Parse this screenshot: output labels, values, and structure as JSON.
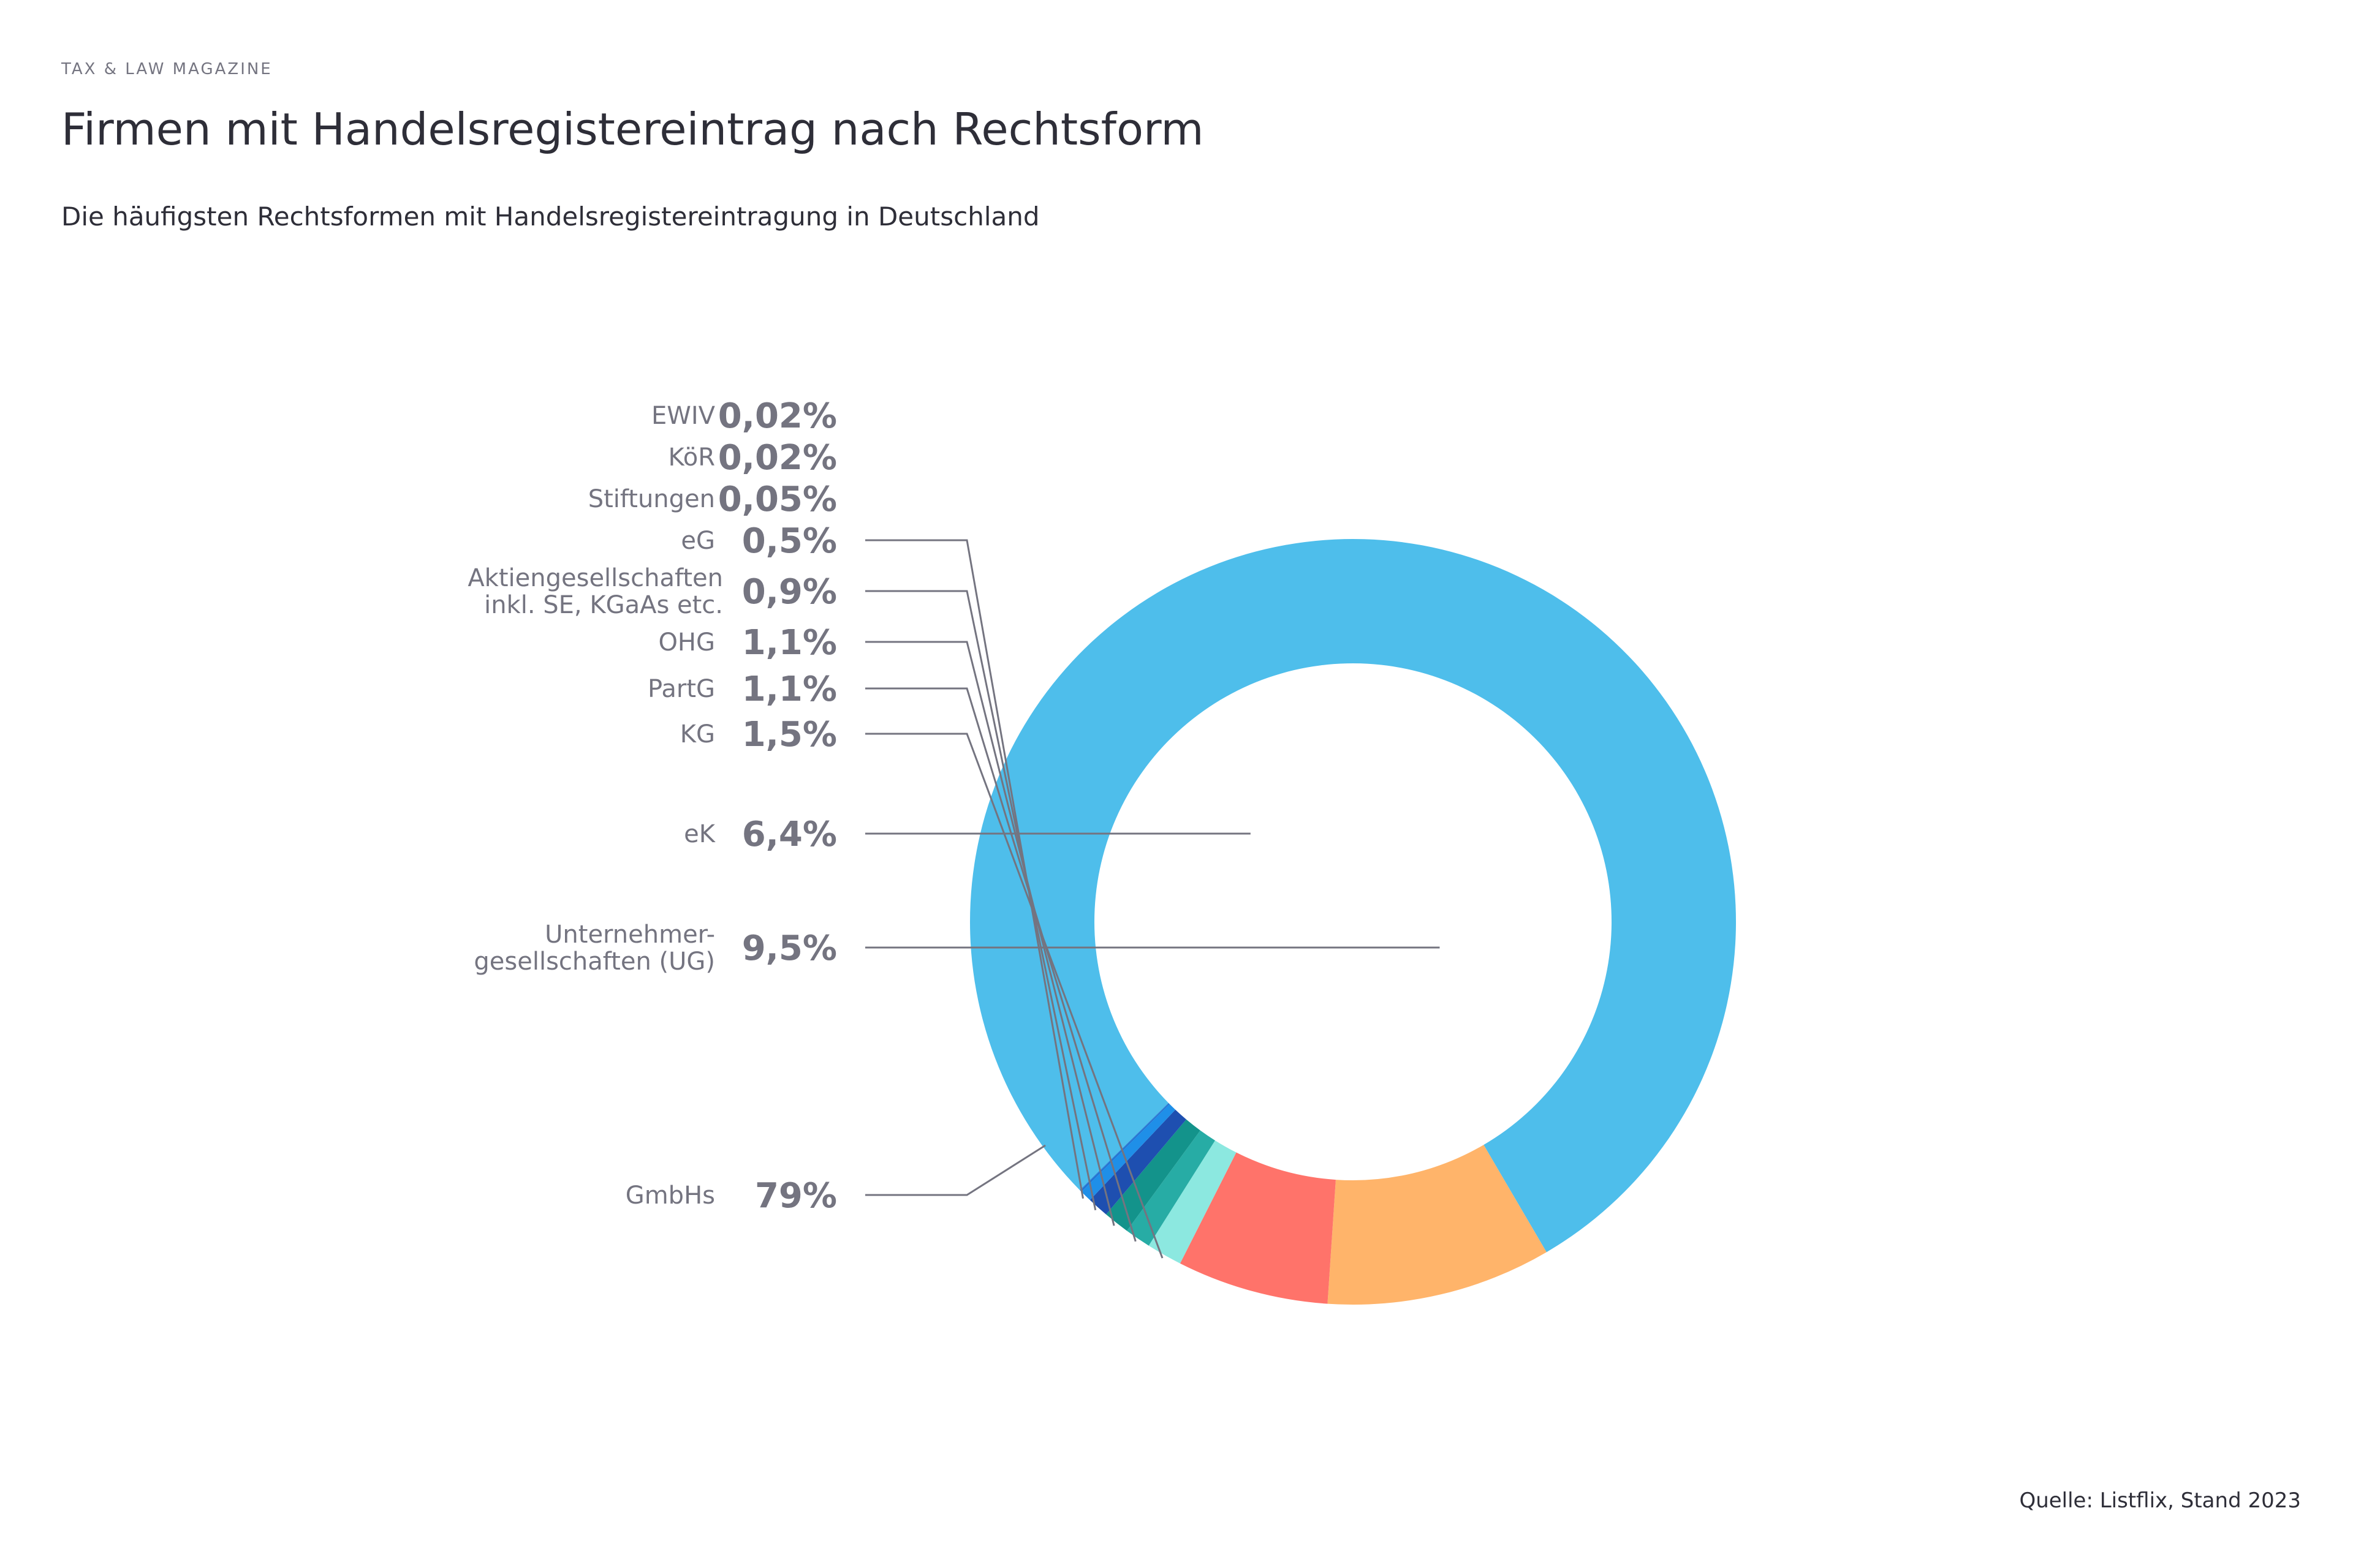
{
  "header": {
    "magazine": "TAX & LAW MAGAZINE",
    "title": "Firmen mit Handelsregistereintrag nach Rechtsform",
    "subtitle": "Die häufigsten Rechtsformen mit Handelsregistereintragung in Deutschland"
  },
  "source": "Quelle: Listflix, Stand 2023",
  "chart_data": {
    "type": "pie",
    "variant": "donut",
    "title": "Firmen mit Handelsregistereintrag nach Rechtsform",
    "subtitle": "Die häufigsten Rechtsformen mit Handelsregistereintragung in Deutschland",
    "unit": "%",
    "legend": "none",
    "slices": [
      {
        "key": "gmbh",
        "label": "GmbHs",
        "value": 79,
        "value_label": "79%",
        "color": "#4ebeeb"
      },
      {
        "key": "ug",
        "label": "Unternehmer-gesellschaften (UG)",
        "label_lines": [
          "Unternehmer-",
          "gesellschaften (UG)"
        ],
        "value": 9.5,
        "value_label": "9,5%",
        "color": "#ffb46a"
      },
      {
        "key": "ek",
        "label": "eK",
        "value": 6.4,
        "value_label": "6,4%",
        "color": "#ff736a"
      },
      {
        "key": "kg",
        "label": "KG",
        "value": 1.5,
        "value_label": "1,5%",
        "color": "#8ce8e0"
      },
      {
        "key": "partg",
        "label": "PartG",
        "value": 1.1,
        "value_label": "1,1%",
        "color": "#27aca5"
      },
      {
        "key": "ohg",
        "label": "OHG",
        "value": 1.1,
        "value_label": "1,1%",
        "color": "#13938b"
      },
      {
        "key": "ag",
        "label": "Aktiengesellschaften inkl. SE, KGaAs etc.",
        "label_lines": [
          "Aktiengesellschaften",
          "inkl. SE, KGaAs etc."
        ],
        "value": 0.9,
        "value_label": "0,9%",
        "color": "#1e4fb0"
      },
      {
        "key": "eg",
        "label": "eG",
        "value": 0.5,
        "value_label": "0,5%",
        "color": "#1f8fe8"
      },
      {
        "key": "stiftungen",
        "label": "Stiftungen",
        "value": 0.05,
        "value_label": "0,05%",
        "color": "#1a6ed0"
      },
      {
        "key": "koer",
        "label": "KöR",
        "value": 0.02,
        "value_label": "0,02%",
        "color": "#1a6ed0"
      },
      {
        "key": "ewiv",
        "label": "EWIV",
        "value": 0.02,
        "value_label": "0,02%",
        "color": "#1a6ed0"
      }
    ]
  }
}
